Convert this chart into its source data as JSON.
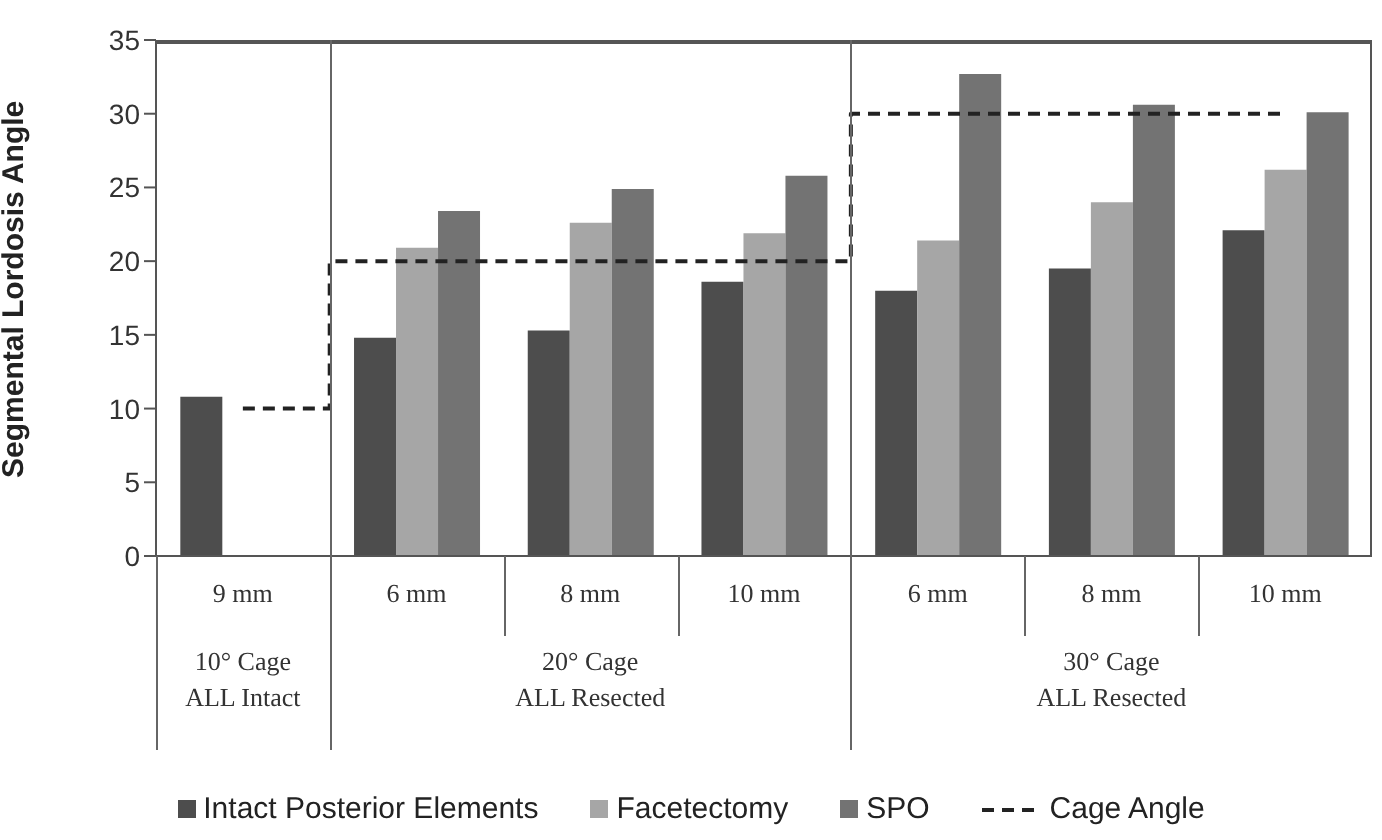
{
  "chart_data": {
    "type": "bar",
    "ylabel": "Segmental Lordosis Angle",
    "categories": [
      "9 mm",
      "6 mm",
      "8 mm",
      "10 mm",
      "6 mm",
      "8 mm",
      "10 mm"
    ],
    "series": [
      {
        "name": "Intact Posterior Elements",
        "color": "#4d4d4d",
        "values": [
          10.8,
          14.8,
          15.3,
          18.6,
          18.0,
          19.5,
          22.1
        ]
      },
      {
        "name": "Facetectomy",
        "color": "#a6a6a6",
        "values": [
          null,
          20.9,
          22.6,
          21.9,
          21.4,
          24.0,
          26.2
        ]
      },
      {
        "name": "SPO",
        "color": "#737373",
        "values": [
          null,
          23.4,
          24.9,
          25.8,
          32.7,
          30.6,
          30.1
        ]
      },
      {
        "name": "Cage Angle",
        "type": "step",
        "color": "#222222",
        "line_style": "dashed",
        "marker": "none",
        "values": [
          10,
          20,
          20,
          20,
          30,
          30,
          30
        ]
      }
    ],
    "annotations": [
      "10° Cage\nALL Intact",
      "20° Cage\nALL Resected",
      "30° Cage\nALL Resected"
    ],
    "ylim": [
      0,
      35
    ],
    "yticks": [
      0,
      5,
      10,
      15,
      20,
      25,
      30,
      35
    ],
    "grid": false,
    "legend": "bottom"
  }
}
